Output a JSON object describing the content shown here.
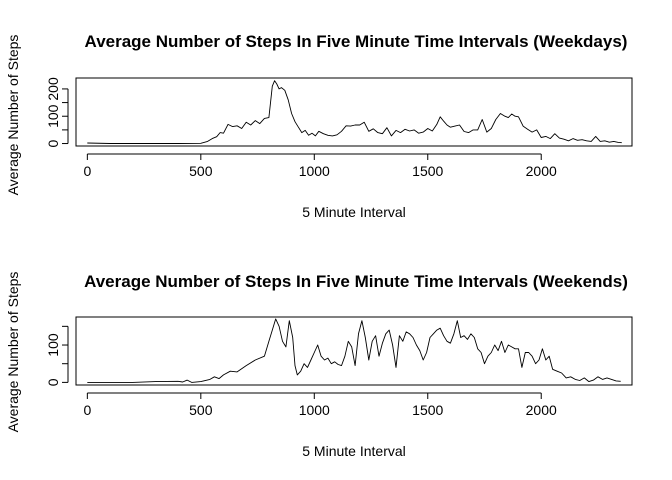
{
  "chart_data": [
    {
      "type": "line",
      "title": "Average Number of Steps In Five Minute Time Intervals (Weekdays)",
      "xlabel": "5 Minute Interval",
      "ylabel": "Average Number of Steps",
      "xlim": [
        -50,
        2400
      ],
      "ylim": [
        -9,
        240
      ],
      "xticks": [
        0,
        500,
        1000,
        1500,
        2000
      ],
      "yticks": [
        0,
        50,
        100,
        150,
        200
      ],
      "ytick_labels": [
        "0",
        "",
        "100",
        "",
        "200"
      ],
      "grid": false,
      "series": [
        {
          "x": [
            0,
            100,
            200,
            300,
            400,
            500,
            530,
            550,
            570,
            585,
            600,
            620,
            640,
            660,
            680,
            700,
            720,
            740,
            760,
            780,
            800,
            815,
            825,
            835,
            845,
            855,
            870,
            885,
            900,
            915,
            930,
            945,
            960,
            975,
            990,
            1005,
            1020,
            1040,
            1060,
            1080,
            1100,
            1120,
            1140,
            1160,
            1180,
            1200,
            1220,
            1240,
            1260,
            1280,
            1300,
            1320,
            1340,
            1360,
            1380,
            1400,
            1420,
            1440,
            1460,
            1480,
            1500,
            1520,
            1540,
            1555,
            1570,
            1585,
            1600,
            1620,
            1640,
            1660,
            1680,
            1700,
            1720,
            1740,
            1760,
            1780,
            1800,
            1820,
            1840,
            1855,
            1870,
            1885,
            1900,
            1920,
            1940,
            1960,
            1980,
            2000,
            2020,
            2040,
            2060,
            2080,
            2100,
            2120,
            2140,
            2160,
            2180,
            2200,
            2220,
            2240,
            2260,
            2280,
            2300,
            2320,
            2340,
            2355
          ],
          "y": [
            2,
            0,
            0,
            0,
            0,
            1,
            8,
            18,
            25,
            40,
            38,
            70,
            62,
            65,
            55,
            78,
            68,
            84,
            73,
            92,
            95,
            210,
            230,
            218,
            200,
            205,
            195,
            160,
            110,
            80,
            60,
            40,
            48,
            30,
            38,
            28,
            45,
            36,
            30,
            28,
            32,
            45,
            65,
            64,
            68,
            68,
            78,
            45,
            54,
            40,
            36,
            58,
            28,
            48,
            40,
            52,
            46,
            50,
            38,
            42,
            55,
            46,
            70,
            98,
            82,
            68,
            60,
            64,
            68,
            44,
            40,
            50,
            50,
            88,
            42,
            55,
            88,
            110,
            100,
            95,
            108,
            100,
            98,
            64,
            52,
            42,
            50,
            22,
            26,
            18,
            36,
            20,
            16,
            10,
            18,
            12,
            14,
            10,
            8,
            26,
            8,
            10,
            5,
            8,
            4,
            3
          ]
        }
      ]
    },
    {
      "type": "line",
      "title": "Average Number of Steps In Five Minute Time Intervals (Weekends)",
      "xlabel": "5 Minute Interval",
      "ylabel": "Average Number of Steps",
      "xlim": [
        -50,
        2400
      ],
      "ylim": [
        -7,
        175
      ],
      "xticks": [
        0,
        500,
        1000,
        1500,
        2000
      ],
      "yticks": [
        0,
        50,
        100,
        150
      ],
      "ytick_labels": [
        "0",
        "",
        "100",
        ""
      ],
      "grid": false,
      "series": [
        {
          "x": [
            0,
            100,
            200,
            300,
            400,
            420,
            440,
            460,
            500,
            540,
            560,
            580,
            600,
            630,
            660,
            700,
            740,
            780,
            800,
            815,
            830,
            845,
            860,
            875,
            890,
            905,
            915,
            925,
            940,
            955,
            970,
            985,
            1000,
            1015,
            1030,
            1045,
            1060,
            1075,
            1090,
            1105,
            1120,
            1135,
            1150,
            1165,
            1180,
            1195,
            1210,
            1225,
            1240,
            1255,
            1270,
            1285,
            1300,
            1315,
            1330,
            1345,
            1360,
            1375,
            1390,
            1405,
            1420,
            1435,
            1450,
            1465,
            1480,
            1495,
            1510,
            1525,
            1540,
            1555,
            1570,
            1585,
            1600,
            1615,
            1630,
            1645,
            1660,
            1675,
            1690,
            1705,
            1720,
            1735,
            1750,
            1765,
            1780,
            1795,
            1810,
            1825,
            1840,
            1855,
            1870,
            1885,
            1900,
            1915,
            1930,
            1945,
            1960,
            1975,
            1990,
            2005,
            2020,
            2035,
            2050,
            2070,
            2090,
            2110,
            2130,
            2150,
            2170,
            2190,
            2210,
            2230,
            2250,
            2270,
            2290,
            2310,
            2330,
            2350
          ],
          "y": [
            0,
            0,
            0,
            2,
            3,
            1,
            6,
            0,
            2,
            8,
            15,
            10,
            20,
            30,
            28,
            45,
            60,
            70,
            110,
            140,
            170,
            150,
            110,
            95,
            165,
            120,
            45,
            20,
            30,
            50,
            40,
            60,
            80,
            100,
            70,
            60,
            65,
            50,
            55,
            48,
            45,
            70,
            110,
            95,
            45,
            130,
            165,
            120,
            60,
            110,
            125,
            70,
            105,
            130,
            140,
            100,
            40,
            125,
            110,
            135,
            130,
            120,
            100,
            85,
            60,
            80,
            120,
            130,
            140,
            145,
            125,
            110,
            105,
            130,
            165,
            120,
            125,
            115,
            130,
            120,
            90,
            80,
            50,
            70,
            80,
            100,
            85,
            110,
            80,
            100,
            95,
            90,
            90,
            40,
            80,
            80,
            70,
            50,
            60,
            90,
            60,
            70,
            35,
            30,
            25,
            12,
            15,
            8,
            5,
            12,
            2,
            6,
            15,
            8,
            12,
            8,
            4,
            3
          ]
        }
      ]
    }
  ]
}
